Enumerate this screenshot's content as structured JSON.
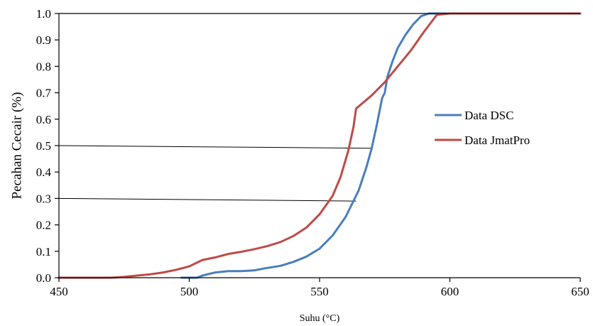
{
  "chart_data": {
    "type": "line",
    "title": "",
    "xlabel": "Suhu (°C)",
    "ylabel": "Pecahan Cecair (%)",
    "xlim": [
      450,
      650
    ],
    "ylim": [
      0,
      1
    ],
    "x_ticks": [
      "450",
      "500",
      "550",
      "600",
      "650"
    ],
    "y_ticks": [
      "0.0",
      "0.1",
      "0.2",
      "0.3",
      "0.4",
      "0.5",
      "0.6",
      "0.7",
      "0.8",
      "0.9",
      "1.0"
    ],
    "grid": false,
    "legend_position": "right",
    "series": [
      {
        "name": "Data DSC",
        "color": "#4a7ebb",
        "points": [
          [
            497,
            0.0
          ],
          [
            503,
            0.0
          ],
          [
            505,
            0.008
          ],
          [
            510,
            0.02
          ],
          [
            515,
            0.025
          ],
          [
            520,
            0.025
          ],
          [
            525,
            0.028
          ],
          [
            530,
            0.037
          ],
          [
            535,
            0.045
          ],
          [
            540,
            0.06
          ],
          [
            545,
            0.08
          ],
          [
            550,
            0.11
          ],
          [
            555,
            0.16
          ],
          [
            560,
            0.23
          ],
          [
            565,
            0.33
          ],
          [
            568,
            0.42
          ],
          [
            570,
            0.49
          ],
          [
            572,
            0.58
          ],
          [
            574,
            0.68
          ],
          [
            575,
            0.7
          ],
          [
            576,
            0.76
          ],
          [
            578,
            0.82
          ],
          [
            580,
            0.87
          ],
          [
            583,
            0.92
          ],
          [
            586,
            0.96
          ],
          [
            589,
            0.99
          ],
          [
            592,
            1.0
          ],
          [
            600,
            1.0
          ],
          [
            650,
            1.0
          ]
        ]
      },
      {
        "name": "Data JmatPro",
        "color": "#be4b48",
        "points": [
          [
            450,
            0.0
          ],
          [
            470,
            0.0
          ],
          [
            475,
            0.003
          ],
          [
            480,
            0.008
          ],
          [
            485,
            0.013
          ],
          [
            490,
            0.02
          ],
          [
            495,
            0.03
          ],
          [
            500,
            0.043
          ],
          [
            505,
            0.067
          ],
          [
            510,
            0.077
          ],
          [
            515,
            0.09
          ],
          [
            520,
            0.098
          ],
          [
            525,
            0.108
          ],
          [
            530,
            0.12
          ],
          [
            535,
            0.135
          ],
          [
            540,
            0.158
          ],
          [
            545,
            0.19
          ],
          [
            550,
            0.24
          ],
          [
            555,
            0.31
          ],
          [
            558,
            0.38
          ],
          [
            561,
            0.48
          ],
          [
            563,
            0.57
          ],
          [
            564,
            0.64
          ],
          [
            570,
            0.69
          ],
          [
            575,
            0.74
          ],
          [
            580,
            0.8
          ],
          [
            585,
            0.86
          ],
          [
            590,
            0.93
          ],
          [
            595,
            0.995
          ],
          [
            600,
            1.0
          ],
          [
            650,
            1.0
          ]
        ]
      }
    ],
    "reference_lines": [
      {
        "points": [
          [
            450,
            0.5
          ],
          [
            570,
            0.49
          ]
        ]
      },
      {
        "points": [
          [
            450,
            0.3
          ],
          [
            564,
            0.29
          ]
        ]
      }
    ]
  },
  "colors": {
    "axis": "#000000",
    "reference_line": "#000000"
  }
}
